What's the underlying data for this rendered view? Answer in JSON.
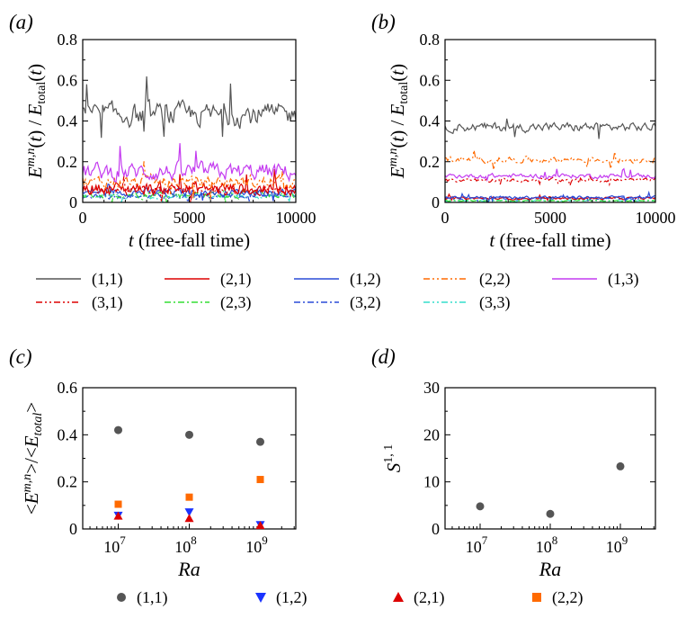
{
  "colors": {
    "m11": "#555555",
    "m21": "#dd0000",
    "m12": "#2a4bd7",
    "m22": "#ff6a00",
    "m13": "#c43bf0",
    "m31": "#dd0000",
    "m23": "#33dd33",
    "m32": "#2a4bd7",
    "m33": "#33ddcc",
    "pt11": "#555555",
    "pt12": "#1a33ff",
    "pt21": "#dd0000",
    "pt22": "#ff6a00"
  },
  "chart_data": [
    {
      "id": "a",
      "type": "line",
      "panel_label": "(a)",
      "xlabel_italic": "t",
      "xlabel_rest": " (free-fall time)",
      "ylabel": "E^{m,n}(t) / E_total(t)",
      "xlim": [
        0,
        10000
      ],
      "ylim": [
        0,
        0.8
      ],
      "xticks": [
        "0",
        "5000",
        "10000"
      ],
      "yticks": [
        "0",
        "0.2",
        "0.4",
        "0.6",
        "0.8"
      ],
      "series_stats": [
        {
          "mode": "(1,1)",
          "mean": 0.43,
          "amp": 0.09
        },
        {
          "mode": "(1,3)",
          "mean": 0.15,
          "amp": 0.07
        },
        {
          "mode": "(2,2)",
          "mean": 0.1,
          "amp": 0.05
        },
        {
          "mode": "(2,1)",
          "mean": 0.07,
          "amp": 0.05
        },
        {
          "mode": "(3,1)",
          "mean": 0.06,
          "amp": 0.04
        },
        {
          "mode": "(1,2)",
          "mean": 0.05,
          "amp": 0.03
        },
        {
          "mode": "(2,3)",
          "mean": 0.04,
          "amp": 0.03
        },
        {
          "mode": "(3,2)",
          "mean": 0.03,
          "amp": 0.02
        },
        {
          "mode": "(3,3)",
          "mean": 0.03,
          "amp": 0.02
        }
      ]
    },
    {
      "id": "b",
      "type": "line",
      "panel_label": "(b)",
      "xlabel_italic": "t",
      "xlabel_rest": " (free-fall time)",
      "ylabel": "E^{m,n}(t) / E_total(t)",
      "xlim": [
        0,
        10000
      ],
      "ylim": [
        0,
        0.8
      ],
      "xticks": [
        "0",
        "5000",
        "10000"
      ],
      "yticks": [
        "0",
        "0.2",
        "0.4",
        "0.6",
        "0.8"
      ],
      "series_stats": [
        {
          "mode": "(1,1)",
          "mean": 0.37,
          "amp": 0.035
        },
        {
          "mode": "(2,2)",
          "mean": 0.21,
          "amp": 0.025
        },
        {
          "mode": "(1,3)",
          "mean": 0.13,
          "amp": 0.018
        },
        {
          "mode": "(3,1)",
          "mean": 0.11,
          "amp": 0.015
        },
        {
          "mode": "(1,2)",
          "mean": 0.025,
          "amp": 0.012
        },
        {
          "mode": "(2,1)",
          "mean": 0.02,
          "amp": 0.01
        },
        {
          "mode": "(3,2)",
          "mean": 0.02,
          "amp": 0.01
        },
        {
          "mode": "(2,3)",
          "mean": 0.008,
          "amp": 0.005
        },
        {
          "mode": "(3,3)",
          "mean": 0.008,
          "amp": 0.005
        }
      ]
    },
    {
      "id": "c",
      "type": "scatter",
      "panel_label": "(c)",
      "xlabel": "Ra",
      "ylabel": "<E^{m,n}>/<E_total>",
      "xscale": "log",
      "xlim": [
        6.5,
        9.5
      ],
      "ylim": [
        0,
        0.6
      ],
      "xticks_exp": [
        "7",
        "8",
        "9"
      ],
      "yticks": [
        "0",
        "0.2",
        "0.4",
        "0.6"
      ],
      "series": [
        {
          "name": "(1,1)",
          "marker": "circle",
          "log_ra": [
            7,
            8,
            9
          ],
          "values": [
            0.42,
            0.4,
            0.37
          ]
        },
        {
          "name": "(2,2)",
          "marker": "square",
          "log_ra": [
            7,
            8,
            9
          ],
          "values": [
            0.105,
            0.135,
            0.21
          ]
        },
        {
          "name": "(1,2)",
          "marker": "triangle-down",
          "log_ra": [
            7,
            8,
            9
          ],
          "values": [
            0.058,
            0.072,
            0.018
          ]
        },
        {
          "name": "(2,1)",
          "marker": "triangle-up",
          "log_ra": [
            7,
            8,
            9
          ],
          "values": [
            0.055,
            0.045,
            0.015
          ]
        }
      ]
    },
    {
      "id": "d",
      "type": "scatter",
      "panel_label": "(d)",
      "xlabel": "Ra",
      "ylabel": "S^{1,1}",
      "xscale": "log",
      "xlim": [
        6.5,
        9.5
      ],
      "ylim": [
        0,
        30
      ],
      "xticks_exp": [
        "7",
        "8",
        "9"
      ],
      "yticks": [
        "0",
        "10",
        "20",
        "30"
      ],
      "series": [
        {
          "name": "(1,1)",
          "marker": "circle",
          "log_ra": [
            7,
            8,
            9
          ],
          "values": [
            4.8,
            3.2,
            13.3
          ]
        }
      ]
    }
  ],
  "legend_top": [
    {
      "label": "(1,1)",
      "color_key": "m11",
      "dash": "solid"
    },
    {
      "label": "(2,1)",
      "color_key": "m21",
      "dash": "solid"
    },
    {
      "label": "(1,2)",
      "color_key": "m12",
      "dash": "solid"
    },
    {
      "label": "(2,2)",
      "color_key": "m22",
      "dash": "dashdotdot"
    },
    {
      "label": "(1,3)",
      "color_key": "m13",
      "dash": "solid"
    },
    {
      "label": "(3,1)",
      "color_key": "m31",
      "dash": "dashdotdot"
    },
    {
      "label": "(2,3)",
      "color_key": "m23",
      "dash": "dashdot"
    },
    {
      "label": "(3,2)",
      "color_key": "m32",
      "dash": "dashdot"
    },
    {
      "label": "(3,3)",
      "color_key": "m33",
      "dash": "dashdotdot"
    }
  ],
  "legend_bottom": [
    {
      "label": "(1,1)",
      "marker": "circle",
      "color_key": "pt11"
    },
    {
      "label": "(1,2)",
      "marker": "triangle-down",
      "color_key": "pt12"
    },
    {
      "label": "(2,1)",
      "marker": "triangle-up",
      "color_key": "pt21"
    },
    {
      "label": "(2,2)",
      "marker": "square",
      "color_key": "pt22"
    }
  ]
}
